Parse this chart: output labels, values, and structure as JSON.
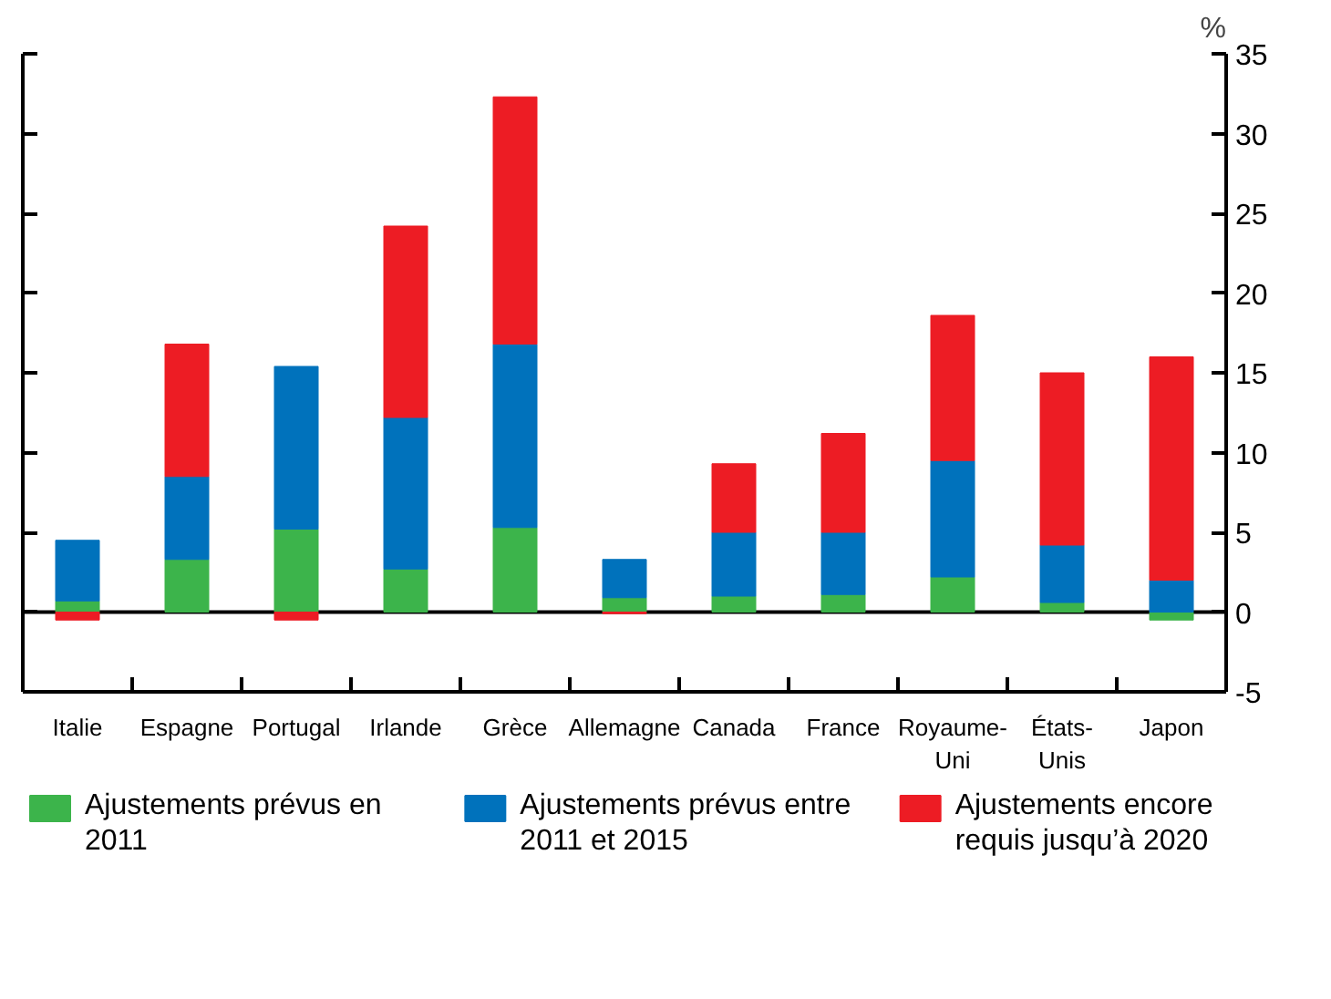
{
  "chart_data": {
    "type": "bar",
    "stacked": true,
    "ylabel": "%",
    "categories": [
      "Italie",
      "Espagne",
      "Portugal",
      "Irlande",
      "Grèce",
      "Allemagne",
      "Canada",
      "France",
      "Royaume-Uni",
      "États-Unis",
      "Japon"
    ],
    "series": [
      {
        "name": "Ajustements prévus en 2011",
        "color": "#3cb44b",
        "values": [
          0.7,
          3.3,
          5.2,
          2.7,
          5.3,
          0.9,
          1.0,
          1.1,
          2.2,
          0.6,
          -0.5
        ]
      },
      {
        "name": "Ajustements prévus entre 2011 et 2015",
        "color": "#0072bc",
        "values": [
          3.8,
          5.2,
          10.2,
          9.5,
          11.5,
          2.4,
          4.0,
          3.9,
          7.3,
          3.6,
          2.0
        ]
      },
      {
        "name": "Ajustements encore requis jusqu’à 2020",
        "color": "#ed1c24",
        "values": [
          -0.5,
          8.3,
          -0.5,
          12.0,
          15.5,
          -0.1,
          4.3,
          6.2,
          9.1,
          10.8,
          14.0
        ]
      }
    ],
    "ylim": [
      -5,
      35
    ],
    "yticks": [
      -5,
      0,
      5,
      10,
      15,
      20,
      25,
      30,
      35
    ],
    "ref_lines": [
      {
        "axis": "y",
        "value": 0,
        "color": "#000000"
      }
    ],
    "grid": false,
    "legend": "bottom"
  }
}
